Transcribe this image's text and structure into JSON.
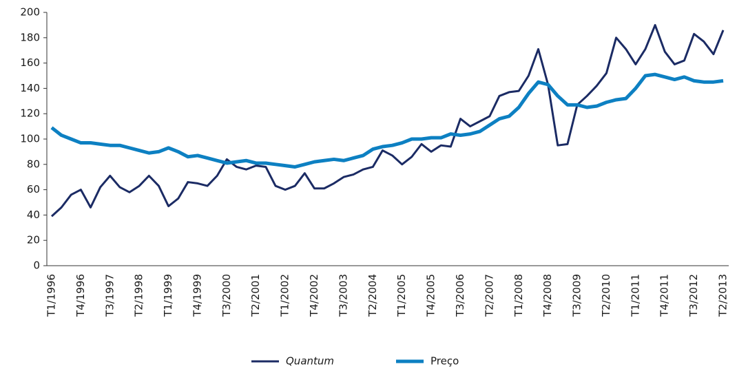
{
  "chart_data": {
    "type": "line",
    "categories": [
      "T1/1996",
      null,
      null,
      "T4/1996",
      null,
      null,
      "T3/1997",
      null,
      null,
      "T2/1998",
      null,
      null,
      "T1/1999",
      null,
      null,
      "T4/1999",
      null,
      null,
      "T3/2000",
      null,
      null,
      "T2/2001",
      null,
      null,
      "T1/2002",
      null,
      null,
      "T4/2002",
      null,
      null,
      "T3/2003",
      null,
      null,
      "T2/2004",
      null,
      null,
      "T1/2005",
      null,
      null,
      "T4/2005",
      null,
      null,
      "T3/2006",
      null,
      null,
      "T2/2007",
      null,
      null,
      "T1/2008",
      null,
      null,
      "T4/2008",
      null,
      null,
      "T3/2009",
      null,
      null,
      "T2/2010",
      null,
      null,
      "T1/2011",
      null,
      null,
      "T4/2011",
      null,
      null,
      "T3/2012",
      null,
      null,
      "T2/2013"
    ],
    "series": [
      {
        "name": "Quantum",
        "color": "#1b2b64",
        "style": "italic",
        "width": 3,
        "values": [
          39,
          46,
          56,
          60,
          46,
          62,
          71,
          62,
          58,
          63,
          71,
          63,
          47,
          53,
          66,
          65,
          63,
          71,
          84,
          78,
          76,
          79,
          78,
          63,
          60,
          63,
          73,
          61,
          61,
          65,
          70,
          72,
          76,
          78,
          91,
          87,
          80,
          86,
          96,
          90,
          95,
          94,
          116,
          110,
          114,
          118,
          134,
          137,
          138,
          150,
          171,
          143,
          95,
          96,
          127,
          134,
          142,
          152,
          180,
          171,
          159,
          171,
          190,
          169,
          159,
          162,
          183,
          177,
          167,
          186
        ]
      },
      {
        "name": "Preço",
        "color": "#0d80c2",
        "style": "normal",
        "width": 5,
        "values": [
          109,
          103,
          100,
          97,
          97,
          96,
          95,
          95,
          93,
          91,
          89,
          90,
          93,
          90,
          86,
          87,
          85,
          83,
          81,
          82,
          83,
          81,
          81,
          80,
          79,
          78,
          80,
          82,
          83,
          84,
          83,
          85,
          87,
          92,
          94,
          95,
          97,
          100,
          100,
          101,
          101,
          104,
          103,
          104,
          106,
          111,
          116,
          118,
          125,
          136,
          145,
          143,
          134,
          127,
          127,
          125,
          126,
          129,
          131,
          132,
          140,
          150,
          151,
          149,
          147,
          149,
          146,
          145,
          145,
          146
        ]
      }
    ],
    "ylim": [
      0,
      200
    ],
    "yticks": [
      0,
      20,
      40,
      60,
      80,
      100,
      120,
      140,
      160,
      180,
      200
    ],
    "grid": false,
    "legend": "bottom"
  }
}
